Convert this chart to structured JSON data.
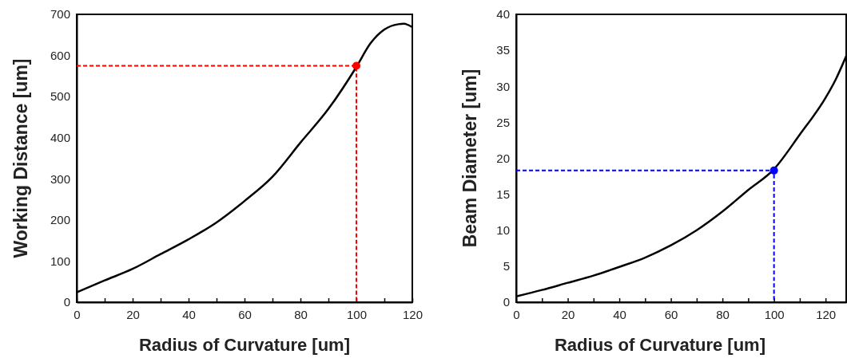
{
  "chart_data": [
    {
      "type": "line",
      "xlabel": "Radius of Curvature [um]",
      "ylabel": "Working Distance [um]",
      "xlim": [
        0,
        120
      ],
      "ylim": [
        0,
        700
      ],
      "xticks": [
        0,
        {
          "value": 10,
          "label": null
        },
        20,
        {
          "value": 30,
          "label": null
        },
        40,
        {
          "value": 50,
          "label": null
        },
        60,
        {
          "value": 70,
          "label": null
        },
        80,
        {
          "value": 90,
          "label": null
        },
        100,
        {
          "value": 110,
          "label": null
        },
        120
      ],
      "yticks": [
        0,
        100,
        200,
        300,
        400,
        500,
        600,
        700
      ],
      "grid": false,
      "series": [
        {
          "color": "#000000",
          "x": [
            0,
            10,
            20,
            30,
            40,
            50,
            60,
            70,
            80,
            90,
            100,
            105,
            110,
            115,
            117,
            120
          ],
          "values": [
            24,
            53,
            81,
            117,
            153,
            194,
            246,
            305,
            388,
            470,
            572,
            629,
            663,
            676,
            677,
            669
          ]
        },
        {
          "type": "line",
          "color": "#ff0000",
          "line_style": "dashed",
          "x": [
            0,
            100,
            100
          ],
          "values": [
            575,
            575,
            0
          ]
        },
        {
          "type": "scatter",
          "color": "#ff0000",
          "marker": "circle",
          "x": [
            100
          ],
          "values": [
            575
          ]
        }
      ]
    },
    {
      "type": "line",
      "xlabel": "Radius of Curvature [um]",
      "ylabel": "Beam Diameter [um]",
      "xlim": [
        0,
        128
      ],
      "ylim": [
        0,
        40
      ],
      "xticks": [
        0,
        {
          "value": 10,
          "label": null
        },
        20,
        {
          "value": 30,
          "label": null
        },
        40,
        {
          "value": 50,
          "label": null
        },
        60,
        {
          "value": 70,
          "label": null
        },
        80,
        {
          "value": 90,
          "label": null
        },
        100,
        {
          "value": 110,
          "label": null
        },
        120
      ],
      "yticks": [
        0,
        5,
        10,
        15,
        20,
        25,
        30,
        35,
        40
      ],
      "grid": false,
      "series": [
        {
          "color": "#000000",
          "x": [
            0,
            10,
            20,
            30,
            40,
            50,
            60,
            70,
            80,
            90,
            100,
            110,
            120,
            124,
            128
          ],
          "values": [
            0.8,
            1.7,
            2.7,
            3.7,
            4.9,
            6.2,
            7.9,
            10.0,
            12.6,
            15.6,
            18.5,
            23.3,
            28.4,
            31.0,
            34.2
          ]
        },
        {
          "type": "line",
          "color": "#0000ff",
          "line_style": "dashed",
          "x": [
            0,
            100,
            100
          ],
          "values": [
            18.3,
            18.3,
            0
          ]
        },
        {
          "type": "scatter",
          "color": "#0000ff",
          "marker": "circle",
          "x": [
            100
          ],
          "values": [
            18.3
          ]
        }
      ]
    }
  ]
}
